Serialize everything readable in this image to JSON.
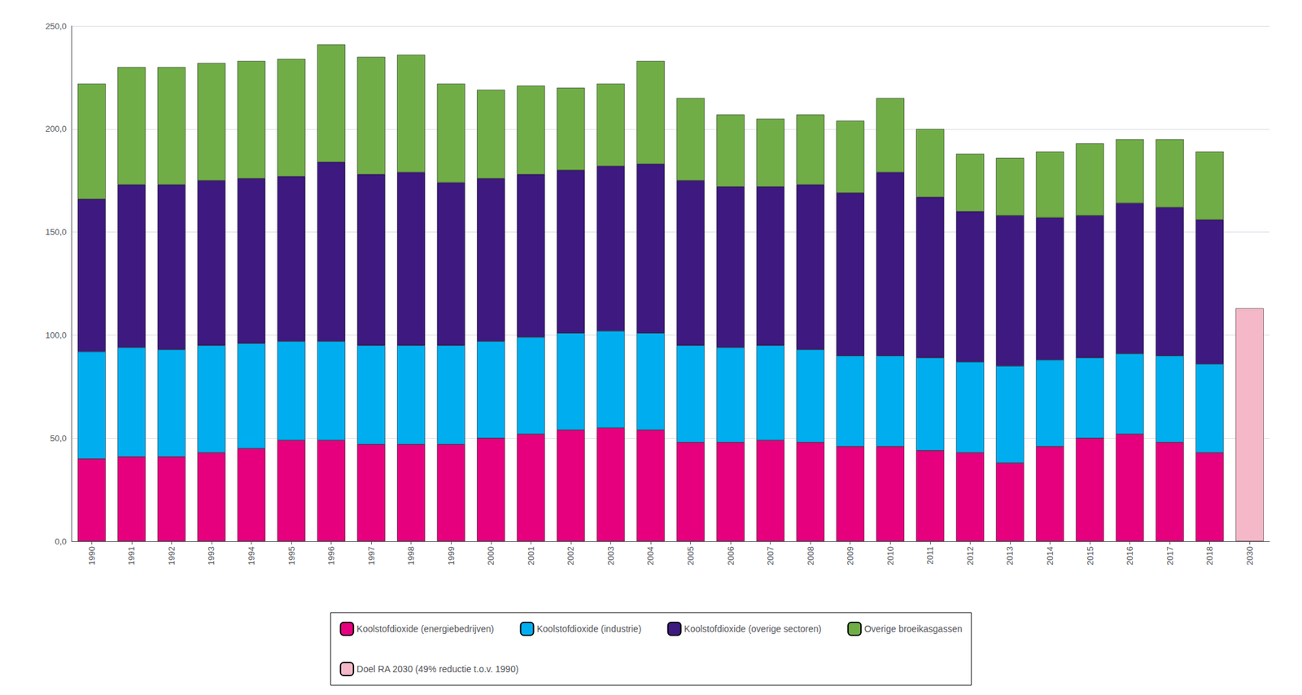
{
  "chart_data": {
    "type": "bar",
    "stacked": true,
    "grid": true,
    "legend": "bottom",
    "categories": [
      "1990",
      "1991",
      "1992",
      "1993",
      "1994",
      "1995",
      "1996",
      "1997",
      "1998",
      "1999",
      "2000",
      "2001",
      "2002",
      "2003",
      "2004",
      "2005",
      "2006",
      "2007",
      "2008",
      "2009",
      "2010",
      "2011",
      "2012",
      "2013",
      "2014",
      "2015",
      "2016",
      "2017",
      "2018",
      "2030"
    ],
    "series": [
      {
        "name": "Koolstofdioxide (energiebedrijven)",
        "color": "#e6007e",
        "values": [
          40,
          41,
          41,
          43,
          45,
          49,
          49,
          47,
          47,
          47,
          50,
          52,
          54,
          55,
          54,
          48,
          48,
          49,
          48,
          46,
          46,
          44,
          43,
          38,
          46,
          50,
          52,
          48,
          43,
          null
        ]
      },
      {
        "name": "Koolstofdioxide (industrie)",
        "color": "#00aeef",
        "values": [
          52,
          53,
          52,
          52,
          51,
          48,
          48,
          48,
          48,
          48,
          47,
          47,
          47,
          47,
          47,
          47,
          46,
          46,
          45,
          44,
          44,
          45,
          44,
          47,
          42,
          39,
          39,
          42,
          43,
          null
        ]
      },
      {
        "name": "Koolstofdioxide (overige sectoren)",
        "color": "#3d1980",
        "values": [
          74,
          79,
          80,
          80,
          80,
          80,
          87,
          83,
          84,
          79,
          79,
          79,
          79,
          80,
          82,
          80,
          78,
          77,
          80,
          79,
          89,
          78,
          73,
          73,
          69,
          69,
          73,
          72,
          70,
          null
        ]
      },
      {
        "name": "Overige broeikasgassen",
        "color": "#70ad47",
        "values": [
          56,
          57,
          57,
          57,
          57,
          57,
          57,
          57,
          57,
          48,
          43,
          43,
          40,
          40,
          50,
          40,
          35,
          33,
          34,
          35,
          36,
          33,
          28,
          28,
          32,
          35,
          31,
          33,
          33,
          null
        ]
      },
      {
        "name": "Doel RA 2030 (49% reductie t.o.v. 1990)",
        "color": "#f4b8c8",
        "values": [
          null,
          null,
          null,
          null,
          null,
          null,
          null,
          null,
          null,
          null,
          null,
          null,
          null,
          null,
          null,
          null,
          null,
          null,
          null,
          null,
          null,
          null,
          null,
          null,
          null,
          null,
          null,
          null,
          null,
          113
        ]
      }
    ],
    "ylim": [
      0,
      250
    ],
    "yticks": [
      {
        "value": 0,
        "label": "0,0"
      },
      {
        "value": 50,
        "label": "50,0"
      },
      {
        "value": 100,
        "label": "100,0"
      },
      {
        "value": 150,
        "label": "150,0"
      },
      {
        "value": 200,
        "label": "200,0"
      },
      {
        "value": 250,
        "label": "250,0"
      }
    ]
  }
}
